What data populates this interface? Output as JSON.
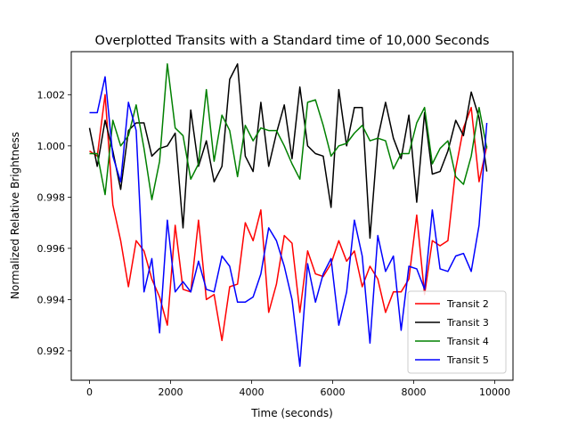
{
  "chart_data": {
    "type": "line",
    "title": "Overplotted Transits with a Standard time of 10,000 Seconds",
    "xlabel": "Time (seconds)",
    "ylabel": "Normalized Relative Brightness",
    "xlim": [
      -450,
      10450
    ],
    "ylim": [
      0.99085,
      1.00368
    ],
    "xticks": [
      0,
      2000,
      4000,
      6000,
      8000,
      10000
    ],
    "xtick_labels": [
      "0",
      "2000",
      "4000",
      "6000",
      "8000",
      "10000"
    ],
    "yticks": [
      0.992,
      0.994,
      0.996,
      0.998,
      1.0,
      1.002
    ],
    "ytick_labels": [
      "0.992",
      "0.994",
      "0.996",
      "0.998",
      "1.000",
      "1.002"
    ],
    "grid": false,
    "legend_position": "lower-right",
    "x": [
      0,
      192,
      384,
      577,
      769,
      961,
      1153,
      1346,
      1538,
      1730,
      1922,
      2115,
      2307,
      2499,
      2691,
      2884,
      3076,
      3268,
      3460,
      3653,
      3845,
      4037,
      4229,
      4422,
      4614,
      4806,
      4998,
      5191,
      5383,
      5575,
      5767,
      5960,
      6152,
      6344,
      6536,
      6729,
      6921,
      7113,
      7305,
      7498,
      7690,
      7882,
      8074,
      8267,
      8459,
      8651,
      8843,
      9036,
      9228,
      9420,
      9612,
      9804
    ],
    "series": [
      {
        "name": "Transit 2",
        "color": "#ff0000",
        "values": [
          0.9998,
          0.9996,
          1.002,
          0.9977,
          0.9963,
          0.9945,
          0.9963,
          0.9959,
          0.9948,
          0.9941,
          0.993,
          0.9969,
          0.9944,
          0.9943,
          0.9971,
          0.994,
          0.9942,
          0.9924,
          0.9945,
          0.9946,
          0.997,
          0.9963,
          0.9975,
          0.9935,
          0.9946,
          0.9965,
          0.9962,
          0.9935,
          0.9959,
          0.995,
          0.9949,
          0.9954,
          0.9963,
          0.9955,
          0.9959,
          0.9945,
          0.9953,
          0.9948,
          0.9935,
          0.9943,
          0.9943,
          0.9948,
          0.9973,
          0.9942,
          0.9963,
          0.9961,
          0.9963,
          0.9991,
          1.0007,
          1.0015,
          0.9986,
          1.0
        ]
      },
      {
        "name": "Transit 3",
        "color": "#000000",
        "values": [
          1.0007,
          0.9992,
          1.001,
          0.9998,
          0.9983,
          1.0006,
          1.0009,
          1.0009,
          0.9996,
          0.9999,
          1.0,
          1.0005,
          0.9968,
          1.0014,
          0.9992,
          1.0002,
          0.9986,
          0.9992,
          1.0026,
          1.0032,
          0.9996,
          0.999,
          1.0017,
          0.9992,
          1.0005,
          1.0016,
          0.9995,
          1.0023,
          1.0,
          0.9997,
          0.9996,
          0.9976,
          1.0022,
          1.0,
          1.0015,
          1.0015,
          0.9964,
          1.0003,
          1.0017,
          1.0003,
          0.9995,
          1.0012,
          0.9978,
          1.0013,
          0.9989,
          0.999,
          0.9998,
          1.001,
          1.0004,
          1.0021,
          1.0011,
          0.999
        ]
      },
      {
        "name": "Transit 4",
        "color": "#008000",
        "values": [
          0.9997,
          0.9997,
          0.9981,
          1.001,
          1.0,
          1.0004,
          1.0016,
          0.9999,
          0.9979,
          0.9994,
          1.0032,
          1.0007,
          1.0004,
          0.9987,
          0.9993,
          1.0022,
          0.9994,
          1.0012,
          1.0006,
          0.9988,
          1.0008,
          1.0002,
          1.0007,
          1.0006,
          1.0006,
          1.0,
          0.9993,
          0.9987,
          1.0017,
          1.0018,
          1.0008,
          0.9996,
          1.0,
          1.0001,
          1.0005,
          1.0008,
          1.0002,
          1.0003,
          1.0002,
          0.9991,
          0.9997,
          0.9997,
          1.0009,
          1.0015,
          0.9993,
          0.9999,
          1.0002,
          0.9988,
          0.9985,
          0.9996,
          1.0015,
          0.9999
        ]
      },
      {
        "name": "Transit 5",
        "color": "#0000ff",
        "values": [
          1.0013,
          1.0013,
          1.0027,
          0.9996,
          0.9986,
          1.0017,
          1.0006,
          0.9943,
          0.9956,
          0.9927,
          0.9971,
          0.9943,
          0.9947,
          0.9943,
          0.9955,
          0.9944,
          0.9943,
          0.9957,
          0.9953,
          0.9939,
          0.9939,
          0.9941,
          0.995,
          0.9968,
          0.9963,
          0.9953,
          0.994,
          0.9914,
          0.9954,
          0.9939,
          0.995,
          0.9956,
          0.993,
          0.9943,
          0.9971,
          0.9957,
          0.9923,
          0.9965,
          0.9951,
          0.9957,
          0.9928,
          0.9953,
          0.9952,
          0.9944,
          0.9975,
          0.9952,
          0.9951,
          0.9957,
          0.9958,
          0.9951,
          0.9969,
          1.0009
        ]
      }
    ]
  }
}
